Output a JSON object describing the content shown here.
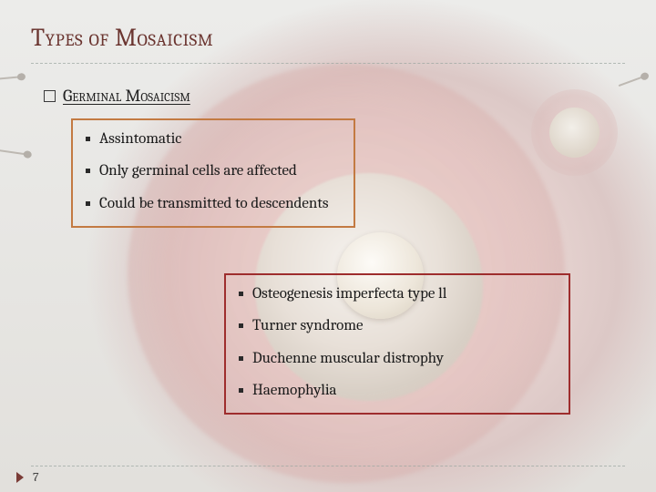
{
  "slide": {
    "title": "Types of Mosaicism",
    "subtitle": "Germinal Mosaicism",
    "page_number": "7"
  },
  "block1": {
    "border_color": "#c37a42",
    "items": [
      "Assintomatic",
      "Only germinal cells are affected",
      "Could be transmitted to descendents"
    ]
  },
  "block2": {
    "border_color": "#9e2d2d",
    "items": [
      "Osteogenesis imperfecta type ll",
      "Turner syndrome",
      "Duchenne muscular distrophy",
      "Haemophylia"
    ]
  },
  "style": {
    "title_color": "#6b3530",
    "text_color": "#1a1a1a",
    "dash_color": "#9aa6a0",
    "bg_tint": "#e8e6e3",
    "title_fontsize": 27,
    "body_fontsize": 17,
    "subtitle_fontsize": 19
  }
}
